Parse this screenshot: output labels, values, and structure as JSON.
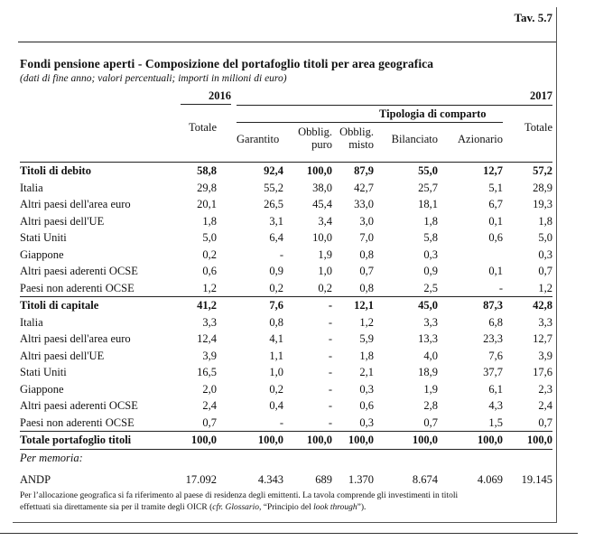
{
  "tav": "Tav. 5.7",
  "title": "Fondi pensione aperti - Composizione del portafoglio titoli per area geografica",
  "subtitle": "(dati di fine anno; valori percentuali; importi in milioni di euro)",
  "header": {
    "year1": "2016",
    "year2": "2017",
    "tipologia": "Tipologia di comparto",
    "totale1": "Totale",
    "garantito": "Garantito",
    "obblig_puro_1": "Obblig.",
    "obblig_puro_2": "puro",
    "obblig_misto_1": "Obblig.",
    "obblig_misto_2": "misto",
    "bilanciato": "Bilanciato",
    "azionario": "Azionario",
    "totale2": "Totale"
  },
  "rows": [
    {
      "label": "Titoli di debito",
      "vals": [
        "58,8",
        "92,4",
        "100,0",
        "87,9",
        "55,0",
        "12,7",
        "57,2"
      ],
      "bold": true
    },
    {
      "label": "Italia",
      "vals": [
        "29,8",
        "55,2",
        "38,0",
        "42,7",
        "25,7",
        "5,1",
        "28,9"
      ]
    },
    {
      "label": "Altri paesi dell'area euro",
      "vals": [
        "20,1",
        "26,5",
        "45,4",
        "33,0",
        "18,1",
        "6,7",
        "19,3"
      ]
    },
    {
      "label": "Altri paesi dell'UE",
      "vals": [
        "1,8",
        "3,1",
        "3,4",
        "3,0",
        "1,8",
        "0,1",
        "1,8"
      ]
    },
    {
      "label": "Stati Uniti",
      "vals": [
        "5,0",
        "6,4",
        "10,0",
        "7,0",
        "5,8",
        "0,6",
        "5,0"
      ]
    },
    {
      "label": "Giappone",
      "vals": [
        "0,2",
        "-",
        "1,9",
        "0,8",
        "0,3",
        "",
        "0,3"
      ]
    },
    {
      "label": "Altri paesi aderenti OCSE",
      "vals": [
        "0,6",
        "0,9",
        "1,0",
        "0,7",
        "0,9",
        "0,1",
        "0,7"
      ]
    },
    {
      "label": "Paesi non aderenti OCSE",
      "vals": [
        "1,2",
        "0,2",
        "0,2",
        "0,8",
        "2,5",
        "-",
        "1,2"
      ]
    },
    {
      "label": "Titoli di capitale",
      "vals": [
        "41,2",
        "7,6",
        "-",
        "12,1",
        "45,0",
        "87,3",
        "42,8"
      ],
      "bold": true
    },
    {
      "label": "Italia",
      "vals": [
        "3,3",
        "0,8",
        "-",
        "1,2",
        "3,3",
        "6,8",
        "3,3"
      ]
    },
    {
      "label": "Altri paesi dell'area euro",
      "vals": [
        "12,4",
        "4,1",
        "-",
        "5,9",
        "13,3",
        "23,3",
        "12,7"
      ]
    },
    {
      "label": "Altri paesi dell'UE",
      "vals": [
        "3,9",
        "1,1",
        "-",
        "1,8",
        "4,0",
        "7,6",
        "3,9"
      ]
    },
    {
      "label": "Stati Uniti",
      "vals": [
        "16,5",
        "1,0",
        "-",
        "2,1",
        "18,9",
        "37,7",
        "17,6"
      ]
    },
    {
      "label": "Giappone",
      "vals": [
        "2,0",
        "0,2",
        "-",
        "0,3",
        "1,9",
        "6,1",
        "2,3"
      ]
    },
    {
      "label": "Altri paesi aderenti OCSE",
      "vals": [
        "2,4",
        "0,4",
        "-",
        "0,6",
        "2,8",
        "4,3",
        "2,4"
      ]
    },
    {
      "label": "Paesi non aderenti OCSE",
      "vals": [
        "0,7",
        "-",
        "-",
        "0,3",
        "0,7",
        "1,5",
        "0,7"
      ]
    },
    {
      "label": "Totale portafoglio titoli",
      "vals": [
        "100,0",
        "100,0",
        "100,0",
        "100,0",
        "100,0",
        "100,0",
        "100,0"
      ],
      "bold": true
    }
  ],
  "memoria": "Per memoria:",
  "andp": {
    "label": "ANDP",
    "vals": [
      "17.092",
      "4.343",
      "689",
      "1.370",
      "8.674",
      "4.069",
      "19.145"
    ]
  },
  "note_1": "Per l’allocazione geografica si fa riferimento al paese di residenza degli emittenti. La tavola comprende gli investimenti in titoli",
  "note_2a": "effettuati sia direttamente sia per il tramite degli OICR (",
  "note_2b": "cfr. Glossario",
  "note_2c": ", “Principio del ",
  "note_2d": "look through",
  "note_2e": "”)."
}
